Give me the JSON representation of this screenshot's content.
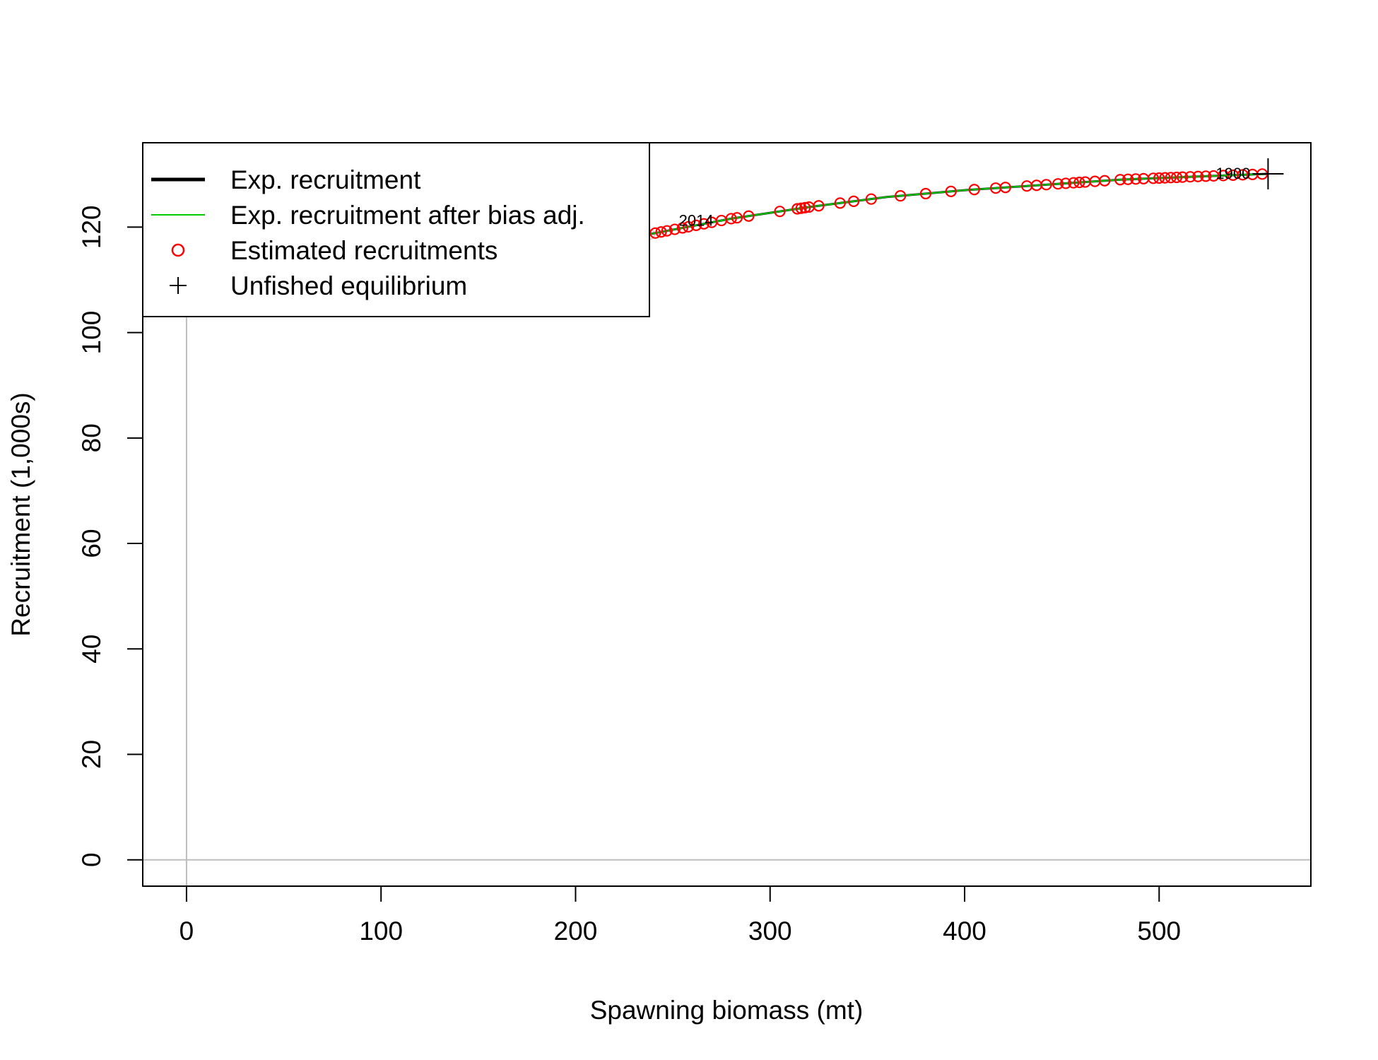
{
  "chart_data": {
    "type": "scatter",
    "title": "",
    "xlabel": "Spawning biomass (mt)",
    "ylabel": "Recruitment (1,000s)",
    "xlim": [
      -22.5,
      578
    ],
    "ylim": [
      -5,
      136
    ],
    "xticks": [
      0,
      100,
      200,
      300,
      400,
      500
    ],
    "yticks": [
      0,
      20,
      40,
      60,
      80,
      100,
      120
    ],
    "ref_lines": {
      "x": 0,
      "y": 0
    },
    "unfished_equilibrium": {
      "x": 556,
      "y": 130.1
    },
    "year_labels": [
      {
        "text": "1900",
        "x": 538,
        "y": 130.1
      },
      {
        "text": "2014",
        "x": 262,
        "y": 121.2
      }
    ],
    "expected_curve": {
      "x": [
        199,
        240,
        280,
        320,
        360,
        400,
        440,
        480,
        520,
        556
      ],
      "y": [
        115.2,
        118.8,
        121.6,
        123.8,
        125.7,
        127.0,
        128.0,
        129.0,
        129.6,
        130.1
      ]
    },
    "series": [
      {
        "name": "Exp. recruitment",
        "type": "line",
        "color": "#000000",
        "x": [
          199,
          240,
          280,
          320,
          360,
          400,
          440,
          480,
          520,
          556
        ],
        "y": [
          115.2,
          118.8,
          121.6,
          123.8,
          125.7,
          127.0,
          128.0,
          129.0,
          129.6,
          130.1
        ]
      },
      {
        "name": "Exp. recruitment after bias adj.",
        "type": "line",
        "color": "#00cc00",
        "x": [
          199,
          240,
          280,
          320,
          360,
          400,
          440,
          480,
          520,
          556
        ],
        "y": [
          115.2,
          118.8,
          121.6,
          123.8,
          125.7,
          127.0,
          128.0,
          129.0,
          129.6,
          130.1
        ]
      },
      {
        "name": "Estimated recruitments",
        "type": "scatter",
        "color": "#ff0000",
        "faded_color": "#f4c0c0",
        "faded_x": [
          199,
          202,
          206,
          210,
          214,
          218,
          222,
          226,
          230,
          234,
          238
        ],
        "x": [
          241,
          244,
          247,
          251,
          255,
          258,
          262,
          266,
          270,
          275,
          280,
          283,
          289,
          305,
          314,
          316,
          318,
          320,
          325,
          336,
          343,
          352,
          367,
          380,
          393,
          405,
          416,
          421,
          432,
          437,
          442,
          448,
          452,
          456,
          459,
          462,
          467,
          472,
          480,
          484,
          488,
          492,
          497,
          500,
          503,
          506,
          509,
          512,
          516,
          520,
          524,
          528,
          533,
          538,
          543,
          548,
          553
        ]
      },
      {
        "name": "Unfished equilibrium",
        "type": "marker",
        "color": "#000000"
      }
    ],
    "legend": {
      "position": "top-left",
      "entries": [
        {
          "label": "Exp. recruitment",
          "kind": "thick-line",
          "color": "#000000"
        },
        {
          "label": "Exp. recruitment after bias adj.",
          "kind": "line",
          "color": "#00cc00"
        },
        {
          "label": "Estimated recruitments",
          "kind": "circle",
          "color": "#ff0000"
        },
        {
          "label": "Unfished equilibrium",
          "kind": "plus",
          "color": "#000000"
        }
      ]
    },
    "colors": {
      "axis": "#000000",
      "ref_line": "#bebebe",
      "expected": "#000000",
      "bias_adjusted": "#00cc00",
      "estimated": "#ff0000"
    },
    "grid": false
  }
}
